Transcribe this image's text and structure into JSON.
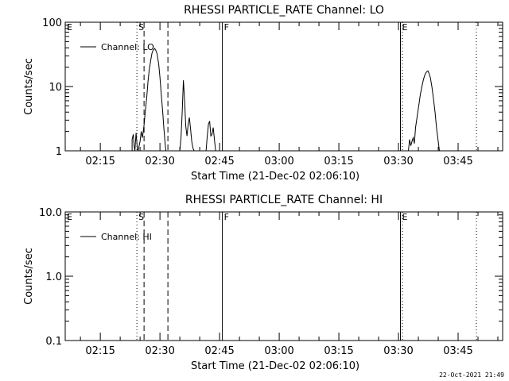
{
  "footer": {
    "timestamp": "22-Oct-2021 21:49"
  },
  "chart_data": [
    {
      "type": "line",
      "title": "RHESSI PARTICLE_RATE Channel: LO",
      "xlabel": "Start Time (21-Dec-02 02:06:10)",
      "ylabel": "Counts/sec",
      "yscale": "log",
      "ylim": [
        1,
        100
      ],
      "xlim_min": [
        6.17,
        99.5
      ],
      "x_tick_labels": [
        "02:15",
        "02:30",
        "02:45",
        "03:00",
        "03:15",
        "03:30",
        "03:45"
      ],
      "y_tick_labels": [
        "1",
        "10",
        "100"
      ],
      "y_tick_values": [
        1,
        10,
        100
      ],
      "legend": {
        "label": "Channel: LO",
        "placement": "top-left"
      },
      "markers": [
        {
          "label": "E",
          "x": 6.17,
          "style": "dotted"
        },
        {
          "label": "S",
          "x": 24.2,
          "style": "dotted"
        },
        {
          "label": "",
          "x": 26.0,
          "style": "dashed"
        },
        {
          "label": "",
          "x": 32.0,
          "style": "dashed"
        },
        {
          "label": "F",
          "x": 45.7,
          "style": "solid"
        },
        {
          "label": "E",
          "x": 90.5,
          "style": "solid"
        },
        {
          "label": "",
          "x": 91.0,
          "style": "dotted"
        },
        {
          "label": "",
          "x": 109.6,
          "style": "dotted"
        }
      ],
      "series": [
        {
          "name": "Channel: LO",
          "segments": [
            [
              [
                23.0,
                1
              ],
              [
                23.0,
                1.5
              ],
              [
                23.3,
                1.8
              ],
              [
                23.5,
                1.2
              ],
              [
                23.7,
                1
              ],
              [
                24.0,
                1.9
              ],
              [
                24.3,
                1.1
              ],
              [
                24.5,
                1
              ],
              [
                25.0,
                1.4
              ],
              [
                25.3,
                2.0
              ],
              [
                25.6,
                1.6
              ],
              [
                26.0,
                2.5
              ],
              [
                26.3,
                4
              ],
              [
                26.7,
                7
              ],
              [
                27.0,
                12
              ],
              [
                27.3,
                18
              ],
              [
                27.7,
                26
              ],
              [
                28.0,
                33
              ],
              [
                28.3,
                37
              ],
              [
                28.7,
                39
              ],
              [
                29.0,
                36
              ],
              [
                29.3,
                32
              ],
              [
                29.7,
                22
              ],
              [
                30.0,
                14
              ],
              [
                30.3,
                8
              ],
              [
                30.7,
                4
              ],
              [
                31.0,
                2.2
              ],
              [
                31.3,
                1.3
              ],
              [
                31.5,
                1
              ]
            ],
            [
              [
                35.0,
                1
              ],
              [
                35.3,
                1.6
              ],
              [
                35.6,
                4
              ],
              [
                35.9,
                12.5
              ],
              [
                36.2,
                6
              ],
              [
                36.5,
                2.4
              ],
              [
                36.8,
                1.7
              ],
              [
                37.1,
                2.6
              ],
              [
                37.4,
                3.3
              ],
              [
                37.7,
                2.2
              ],
              [
                38.0,
                1.4
              ],
              [
                38.3,
                1.1
              ],
              [
                38.6,
                1
              ]
            ],
            [
              [
                41.6,
                1
              ],
              [
                41.9,
                1.7
              ],
              [
                42.2,
                2.6
              ],
              [
                42.5,
                2.9
              ],
              [
                42.8,
                1.7
              ],
              [
                43.1,
                1.8
              ],
              [
                43.4,
                2.3
              ],
              [
                43.7,
                1.5
              ],
              [
                44.0,
                1
              ]
            ],
            [
              [
                92.5,
                1
              ],
              [
                92.8,
                1.5
              ],
              [
                93.1,
                1.2
              ],
              [
                93.4,
                1.4
              ],
              [
                93.7,
                1.6
              ],
              [
                94.0,
                1.3
              ],
              [
                94.3,
                2.3
              ],
              [
                94.7,
                3.4
              ],
              [
                95.1,
                5
              ],
              [
                95.5,
                7.5
              ],
              [
                95.9,
                10
              ],
              [
                96.3,
                13
              ],
              [
                96.7,
                15.5
              ],
              [
                97.1,
                17
              ],
              [
                97.4,
                17.5
              ],
              [
                97.7,
                16
              ],
              [
                98.0,
                14
              ],
              [
                98.4,
                10
              ],
              [
                98.8,
                6.5
              ],
              [
                99.2,
                4
              ],
              [
                99.6,
                2.2
              ],
              [
                100.0,
                1.4
              ],
              [
                100.3,
                1
              ]
            ]
          ]
        }
      ]
    },
    {
      "type": "line",
      "title": "RHESSI PARTICLE_RATE Channel: HI",
      "xlabel": "Start Time (21-Dec-02 02:06:10)",
      "ylabel": "Counts/sec",
      "yscale": "log",
      "ylim": [
        0.1,
        10
      ],
      "x_tick_labels": [
        "02:15",
        "02:30",
        "02:45",
        "03:00",
        "03:15",
        "03:30",
        "03:45"
      ],
      "y_tick_labels": [
        "0.1",
        "1.0",
        "10.0"
      ],
      "y_tick_values": [
        0.1,
        1,
        10
      ],
      "legend": {
        "label": "Channel: HI",
        "placement": "top-left"
      },
      "markers": [
        {
          "label": "E",
          "x": 6.17,
          "style": "dotted"
        },
        {
          "label": "S",
          "x": 24.2,
          "style": "dotted"
        },
        {
          "label": "",
          "x": 26.0,
          "style": "dashed"
        },
        {
          "label": "",
          "x": 32.0,
          "style": "dashed"
        },
        {
          "label": "F",
          "x": 45.7,
          "style": "solid"
        },
        {
          "label": "E",
          "x": 90.5,
          "style": "solid"
        },
        {
          "label": "",
          "x": 91.0,
          "style": "dotted"
        },
        {
          "label": "",
          "x": 109.6,
          "style": "dotted"
        }
      ],
      "series": [
        {
          "name": "Channel: HI",
          "segments": []
        }
      ]
    }
  ]
}
